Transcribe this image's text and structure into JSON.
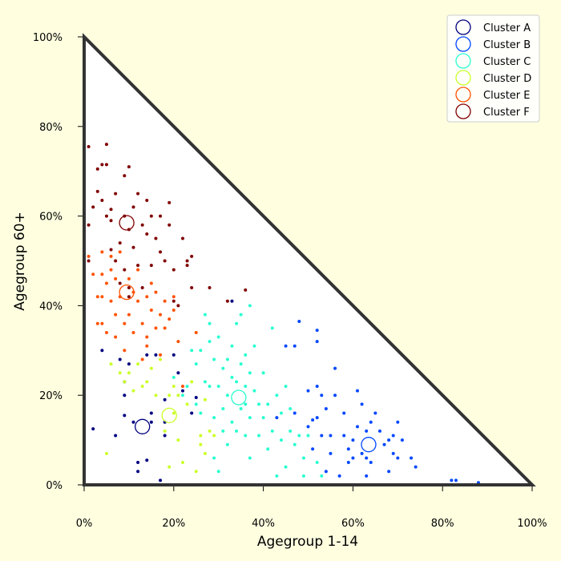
{
  "chart_data": {
    "type": "scatter",
    "title": "",
    "xlabel": "Agegroup 1-14",
    "ylabel": "Agegroup 60+",
    "xlim": [
      0,
      1
    ],
    "ylim": [
      0,
      1
    ],
    "x_ticks": [
      "0%",
      "20%",
      "40%",
      "60%",
      "80%",
      "100%"
    ],
    "y_ticks": [
      "0%",
      "20%",
      "40%",
      "60%",
      "80%",
      "100%"
    ],
    "grid": false,
    "legend_position": "top-right",
    "bounding_triangle": [
      [
        0,
        0
      ],
      [
        1,
        0
      ],
      [
        0,
        1
      ]
    ],
    "series": [
      {
        "name": "Cluster A",
        "color": "#000080",
        "centroid": [
          0.13,
          0.13
        ],
        "points": [
          [
            0.0,
            0.11
          ],
          [
            0.02,
            0.125
          ],
          [
            0.04,
            0.3
          ],
          [
            0.07,
            0.11
          ],
          [
            0.09,
            0.155
          ],
          [
            0.09,
            0.2
          ],
          [
            0.09,
            0.23
          ],
          [
            0.1,
            0.27
          ],
          [
            0.11,
            0.14
          ],
          [
            0.12,
            0.05
          ],
          [
            0.12,
            0.03
          ],
          [
            0.14,
            0.055
          ],
          [
            0.14,
            0.29
          ],
          [
            0.15,
            0.14
          ],
          [
            0.16,
            0.29
          ],
          [
            0.17,
            0.01
          ],
          [
            0.18,
            0.11
          ],
          [
            0.18,
            0.14
          ],
          [
            0.18,
            0.19
          ],
          [
            0.19,
            0.0
          ],
          [
            0.2,
            0.29
          ],
          [
            0.21,
            0.25
          ],
          [
            0.22,
            0.21
          ],
          [
            0.24,
            0.16
          ],
          [
            0.25,
            0.195
          ],
          [
            0.28,
            0.0
          ],
          [
            0.33,
            0.41
          ],
          [
            0.0,
            0.28
          ],
          [
            0.08,
            0.28
          ],
          [
            0.15,
            0.16
          ]
        ]
      },
      {
        "name": "Cluster B",
        "color": "#0047ff",
        "centroid": [
          0.635,
          0.09
        ],
        "points": [
          [
            0.43,
            0.15
          ],
          [
            0.45,
            0.31
          ],
          [
            0.47,
            0.16
          ],
          [
            0.47,
            0.31
          ],
          [
            0.48,
            0.365
          ],
          [
            0.5,
            0.21
          ],
          [
            0.5,
            0.13
          ],
          [
            0.51,
            0.145
          ],
          [
            0.51,
            0.08
          ],
          [
            0.52,
            0.345
          ],
          [
            0.52,
            0.32
          ],
          [
            0.52,
            0.22
          ],
          [
            0.52,
            0.15
          ],
          [
            0.53,
            0.2
          ],
          [
            0.53,
            0.11
          ],
          [
            0.54,
            0.17
          ],
          [
            0.54,
            0.03
          ],
          [
            0.55,
            0.11
          ],
          [
            0.55,
            0.07
          ],
          [
            0.56,
            0.26
          ],
          [
            0.56,
            0.2
          ],
          [
            0.57,
            0.02
          ],
          [
            0.57,
            0.0
          ],
          [
            0.58,
            0.11
          ],
          [
            0.58,
            0.16
          ],
          [
            0.59,
            0.05
          ],
          [
            0.59,
            0.08
          ],
          [
            0.6,
            0.06
          ],
          [
            0.6,
            0.1
          ],
          [
            0.61,
            0.13
          ],
          [
            0.61,
            0.21
          ],
          [
            0.62,
            0.07
          ],
          [
            0.62,
            0.18
          ],
          [
            0.63,
            0.06
          ],
          [
            0.63,
            0.12
          ],
          [
            0.63,
            0.02
          ],
          [
            0.64,
            0.14
          ],
          [
            0.64,
            0.05
          ],
          [
            0.65,
            0.16
          ],
          [
            0.65,
            0.0
          ],
          [
            0.66,
            0.12
          ],
          [
            0.67,
            0.09
          ],
          [
            0.67,
            0.0
          ],
          [
            0.68,
            0.1
          ],
          [
            0.68,
            0.03
          ],
          [
            0.69,
            0.11
          ],
          [
            0.69,
            0.07
          ],
          [
            0.7,
            0.14
          ],
          [
            0.7,
            0.06
          ],
          [
            0.71,
            0.1
          ],
          [
            0.71,
            0.0
          ],
          [
            0.73,
            0.06
          ],
          [
            0.74,
            0.04
          ],
          [
            0.75,
            0.0
          ],
          [
            0.79,
            0.0
          ],
          [
            0.82,
            0.01
          ],
          [
            0.83,
            0.01
          ],
          [
            0.88,
            0.005
          ]
        ]
      },
      {
        "name": "Cluster C",
        "color": "#2affd0",
        "centroid": [
          0.345,
          0.195
        ],
        "points": [
          [
            0.2,
            0.24
          ],
          [
            0.22,
            0.2
          ],
          [
            0.23,
            0.22
          ],
          [
            0.24,
            0.3
          ],
          [
            0.25,
            0.27
          ],
          [
            0.25,
            0.18
          ],
          [
            0.26,
            0.3
          ],
          [
            0.27,
            0.23
          ],
          [
            0.27,
            0.38
          ],
          [
            0.28,
            0.32
          ],
          [
            0.28,
            0.36
          ],
          [
            0.28,
            0.22
          ],
          [
            0.29,
            0.28
          ],
          [
            0.29,
            0.15
          ],
          [
            0.29,
            0.06
          ],
          [
            0.3,
            0.22
          ],
          [
            0.3,
            0.33
          ],
          [
            0.3,
            0.03
          ],
          [
            0.31,
            0.26
          ],
          [
            0.31,
            0.17
          ],
          [
            0.31,
            0.12
          ],
          [
            0.32,
            0.28
          ],
          [
            0.32,
            0.09
          ],
          [
            0.33,
            0.24
          ],
          [
            0.33,
            0.14
          ],
          [
            0.33,
            0.31
          ],
          [
            0.34,
            0.23
          ],
          [
            0.34,
            0.12
          ],
          [
            0.34,
            0.36
          ],
          [
            0.35,
            0.27
          ],
          [
            0.35,
            0.17
          ],
          [
            0.35,
            0.38
          ],
          [
            0.36,
            0.22
          ],
          [
            0.36,
            0.11
          ],
          [
            0.36,
            0.29
          ],
          [
            0.37,
            0.25
          ],
          [
            0.37,
            0.15
          ],
          [
            0.37,
            0.06
          ],
          [
            0.37,
            0.4
          ],
          [
            0.38,
            0.21
          ],
          [
            0.38,
            0.31
          ],
          [
            0.39,
            0.18
          ],
          [
            0.39,
            0.11
          ],
          [
            0.4,
            0.25
          ],
          [
            0.4,
            0.15
          ],
          [
            0.41,
            0.08
          ],
          [
            0.41,
            0.18
          ],
          [
            0.42,
            0.12
          ],
          [
            0.42,
            0.35
          ],
          [
            0.43,
            0.2
          ],
          [
            0.43,
            0.02
          ],
          [
            0.44,
            0.16
          ],
          [
            0.44,
            0.1
          ],
          [
            0.45,
            0.22
          ],
          [
            0.45,
            0.04
          ],
          [
            0.46,
            0.12
          ],
          [
            0.46,
            0.17
          ],
          [
            0.47,
            0.09
          ],
          [
            0.48,
            0.11
          ],
          [
            0.49,
            0.06
          ],
          [
            0.49,
            0.02
          ],
          [
            0.5,
            0.11
          ],
          [
            0.51,
            0.0
          ],
          [
            0.52,
            0.05
          ],
          [
            0.53,
            0.02
          ],
          [
            0.26,
            0.16
          ],
          [
            0.32,
            0.2
          ],
          [
            0.36,
            0.18
          ]
        ]
      },
      {
        "name": "Cluster D",
        "color": "#ccff2a",
        "centroid": [
          0.19,
          0.155
        ],
        "points": [
          [
            0.0,
            0.245
          ],
          [
            0.0,
            0.225
          ],
          [
            0.05,
            0.07
          ],
          [
            0.06,
            0.27
          ],
          [
            0.08,
            0.25
          ],
          [
            0.09,
            0.23
          ],
          [
            0.1,
            0.25
          ],
          [
            0.11,
            0.21
          ],
          [
            0.12,
            0.27
          ],
          [
            0.13,
            0.22
          ],
          [
            0.14,
            0.23
          ],
          [
            0.15,
            0.26
          ],
          [
            0.16,
            0.2
          ],
          [
            0.17,
            0.28
          ],
          [
            0.18,
            0.12
          ],
          [
            0.19,
            0.04
          ],
          [
            0.19,
            0.2
          ],
          [
            0.2,
            0.16
          ],
          [
            0.2,
            0.22
          ],
          [
            0.21,
            0.1
          ],
          [
            0.22,
            0.05
          ],
          [
            0.23,
            0.18
          ],
          [
            0.24,
            0.23
          ],
          [
            0.25,
            0.03
          ],
          [
            0.26,
            0.11
          ],
          [
            0.26,
            0.09
          ],
          [
            0.27,
            0.19
          ],
          [
            0.27,
            0.07
          ],
          [
            0.28,
            0.12
          ],
          [
            0.29,
            0.11
          ],
          [
            0.31,
            0.0
          ],
          [
            0.39,
            0.0
          ],
          [
            0.41,
            0.0
          ],
          [
            0.21,
            0.2
          ]
        ]
      },
      {
        "name": "Cluster E",
        "color": "#ff5200",
        "centroid": [
          0.095,
          0.43
        ],
        "points": [
          [
            0.0,
            0.335
          ],
          [
            0.0,
            0.55
          ],
          [
            0.0,
            0.49
          ],
          [
            0.01,
            0.51
          ],
          [
            0.02,
            0.47
          ],
          [
            0.03,
            0.36
          ],
          [
            0.03,
            0.42
          ],
          [
            0.04,
            0.52
          ],
          [
            0.04,
            0.36
          ],
          [
            0.04,
            0.47
          ],
          [
            0.05,
            0.34
          ],
          [
            0.05,
            0.45
          ],
          [
            0.06,
            0.41
          ],
          [
            0.06,
            0.51
          ],
          [
            0.06,
            0.48
          ],
          [
            0.07,
            0.38
          ],
          [
            0.07,
            0.33
          ],
          [
            0.07,
            0.46
          ],
          [
            0.08,
            0.42
          ],
          [
            0.08,
            0.52
          ],
          [
            0.09,
            0.36
          ],
          [
            0.09,
            0.3
          ],
          [
            0.1,
            0.46
          ],
          [
            0.1,
            0.38
          ],
          [
            0.11,
            0.43
          ],
          [
            0.11,
            0.34
          ],
          [
            0.12,
            0.48
          ],
          [
            0.12,
            0.41
          ],
          [
            0.13,
            0.36
          ],
          [
            0.13,
            0.28
          ],
          [
            0.14,
            0.42
          ],
          [
            0.14,
            0.31
          ],
          [
            0.15,
            0.39
          ],
          [
            0.15,
            0.45
          ],
          [
            0.16,
            0.35
          ],
          [
            0.16,
            0.43
          ],
          [
            0.17,
            0.38
          ],
          [
            0.17,
            0.29
          ],
          [
            0.18,
            0.41
          ],
          [
            0.18,
            0.35
          ],
          [
            0.19,
            0.37
          ],
          [
            0.2,
            0.42
          ],
          [
            0.2,
            0.39
          ],
          [
            0.21,
            0.32
          ],
          [
            0.22,
            0.22
          ],
          [
            0.25,
            0.34
          ],
          [
            0.04,
            0.42
          ],
          [
            0.14,
            0.33
          ]
        ]
      },
      {
        "name": "Cluster F",
        "color": "#800000",
        "centroid": [
          0.095,
          0.585
        ],
        "points": [
          [
            0.0,
            0.775
          ],
          [
            0.0,
            0.75
          ],
          [
            0.0,
            0.72
          ],
          [
            0.0,
            0.69
          ],
          [
            0.0,
            0.66
          ],
          [
            0.0,
            0.63
          ],
          [
            0.0,
            0.6
          ],
          [
            0.01,
            0.755
          ],
          [
            0.01,
            0.58
          ],
          [
            0.01,
            0.5
          ],
          [
            0.02,
            0.62
          ],
          [
            0.03,
            0.705
          ],
          [
            0.03,
            0.655
          ],
          [
            0.04,
            0.715
          ],
          [
            0.04,
            0.635
          ],
          [
            0.05,
            0.76
          ],
          [
            0.05,
            0.715
          ],
          [
            0.05,
            0.6
          ],
          [
            0.06,
            0.615
          ],
          [
            0.06,
            0.525
          ],
          [
            0.07,
            0.65
          ],
          [
            0.07,
            0.5
          ],
          [
            0.08,
            0.54
          ],
          [
            0.08,
            0.45
          ],
          [
            0.09,
            0.69
          ],
          [
            0.09,
            0.6
          ],
          [
            0.09,
            0.48
          ],
          [
            0.1,
            0.71
          ],
          [
            0.1,
            0.57
          ],
          [
            0.1,
            0.42
          ],
          [
            0.11,
            0.62
          ],
          [
            0.11,
            0.53
          ],
          [
            0.12,
            0.65
          ],
          [
            0.12,
            0.49
          ],
          [
            0.13,
            0.58
          ],
          [
            0.13,
            0.44
          ],
          [
            0.14,
            0.635
          ],
          [
            0.14,
            0.56
          ],
          [
            0.15,
            0.6
          ],
          [
            0.15,
            0.49
          ],
          [
            0.16,
            0.55
          ],
          [
            0.17,
            0.6
          ],
          [
            0.17,
            0.52
          ],
          [
            0.18,
            0.5
          ],
          [
            0.19,
            0.63
          ],
          [
            0.19,
            0.58
          ],
          [
            0.2,
            0.48
          ],
          [
            0.2,
            0.41
          ],
          [
            0.21,
            0.4
          ],
          [
            0.22,
            0.55
          ],
          [
            0.23,
            0.49
          ],
          [
            0.23,
            0.5
          ],
          [
            0.24,
            0.51
          ],
          [
            0.24,
            0.44
          ],
          [
            0.28,
            0.44
          ],
          [
            0.32,
            0.41
          ],
          [
            0.36,
            0.435
          ],
          [
            0.1,
            0.44
          ],
          [
            0.06,
            0.59
          ]
        ]
      }
    ]
  }
}
